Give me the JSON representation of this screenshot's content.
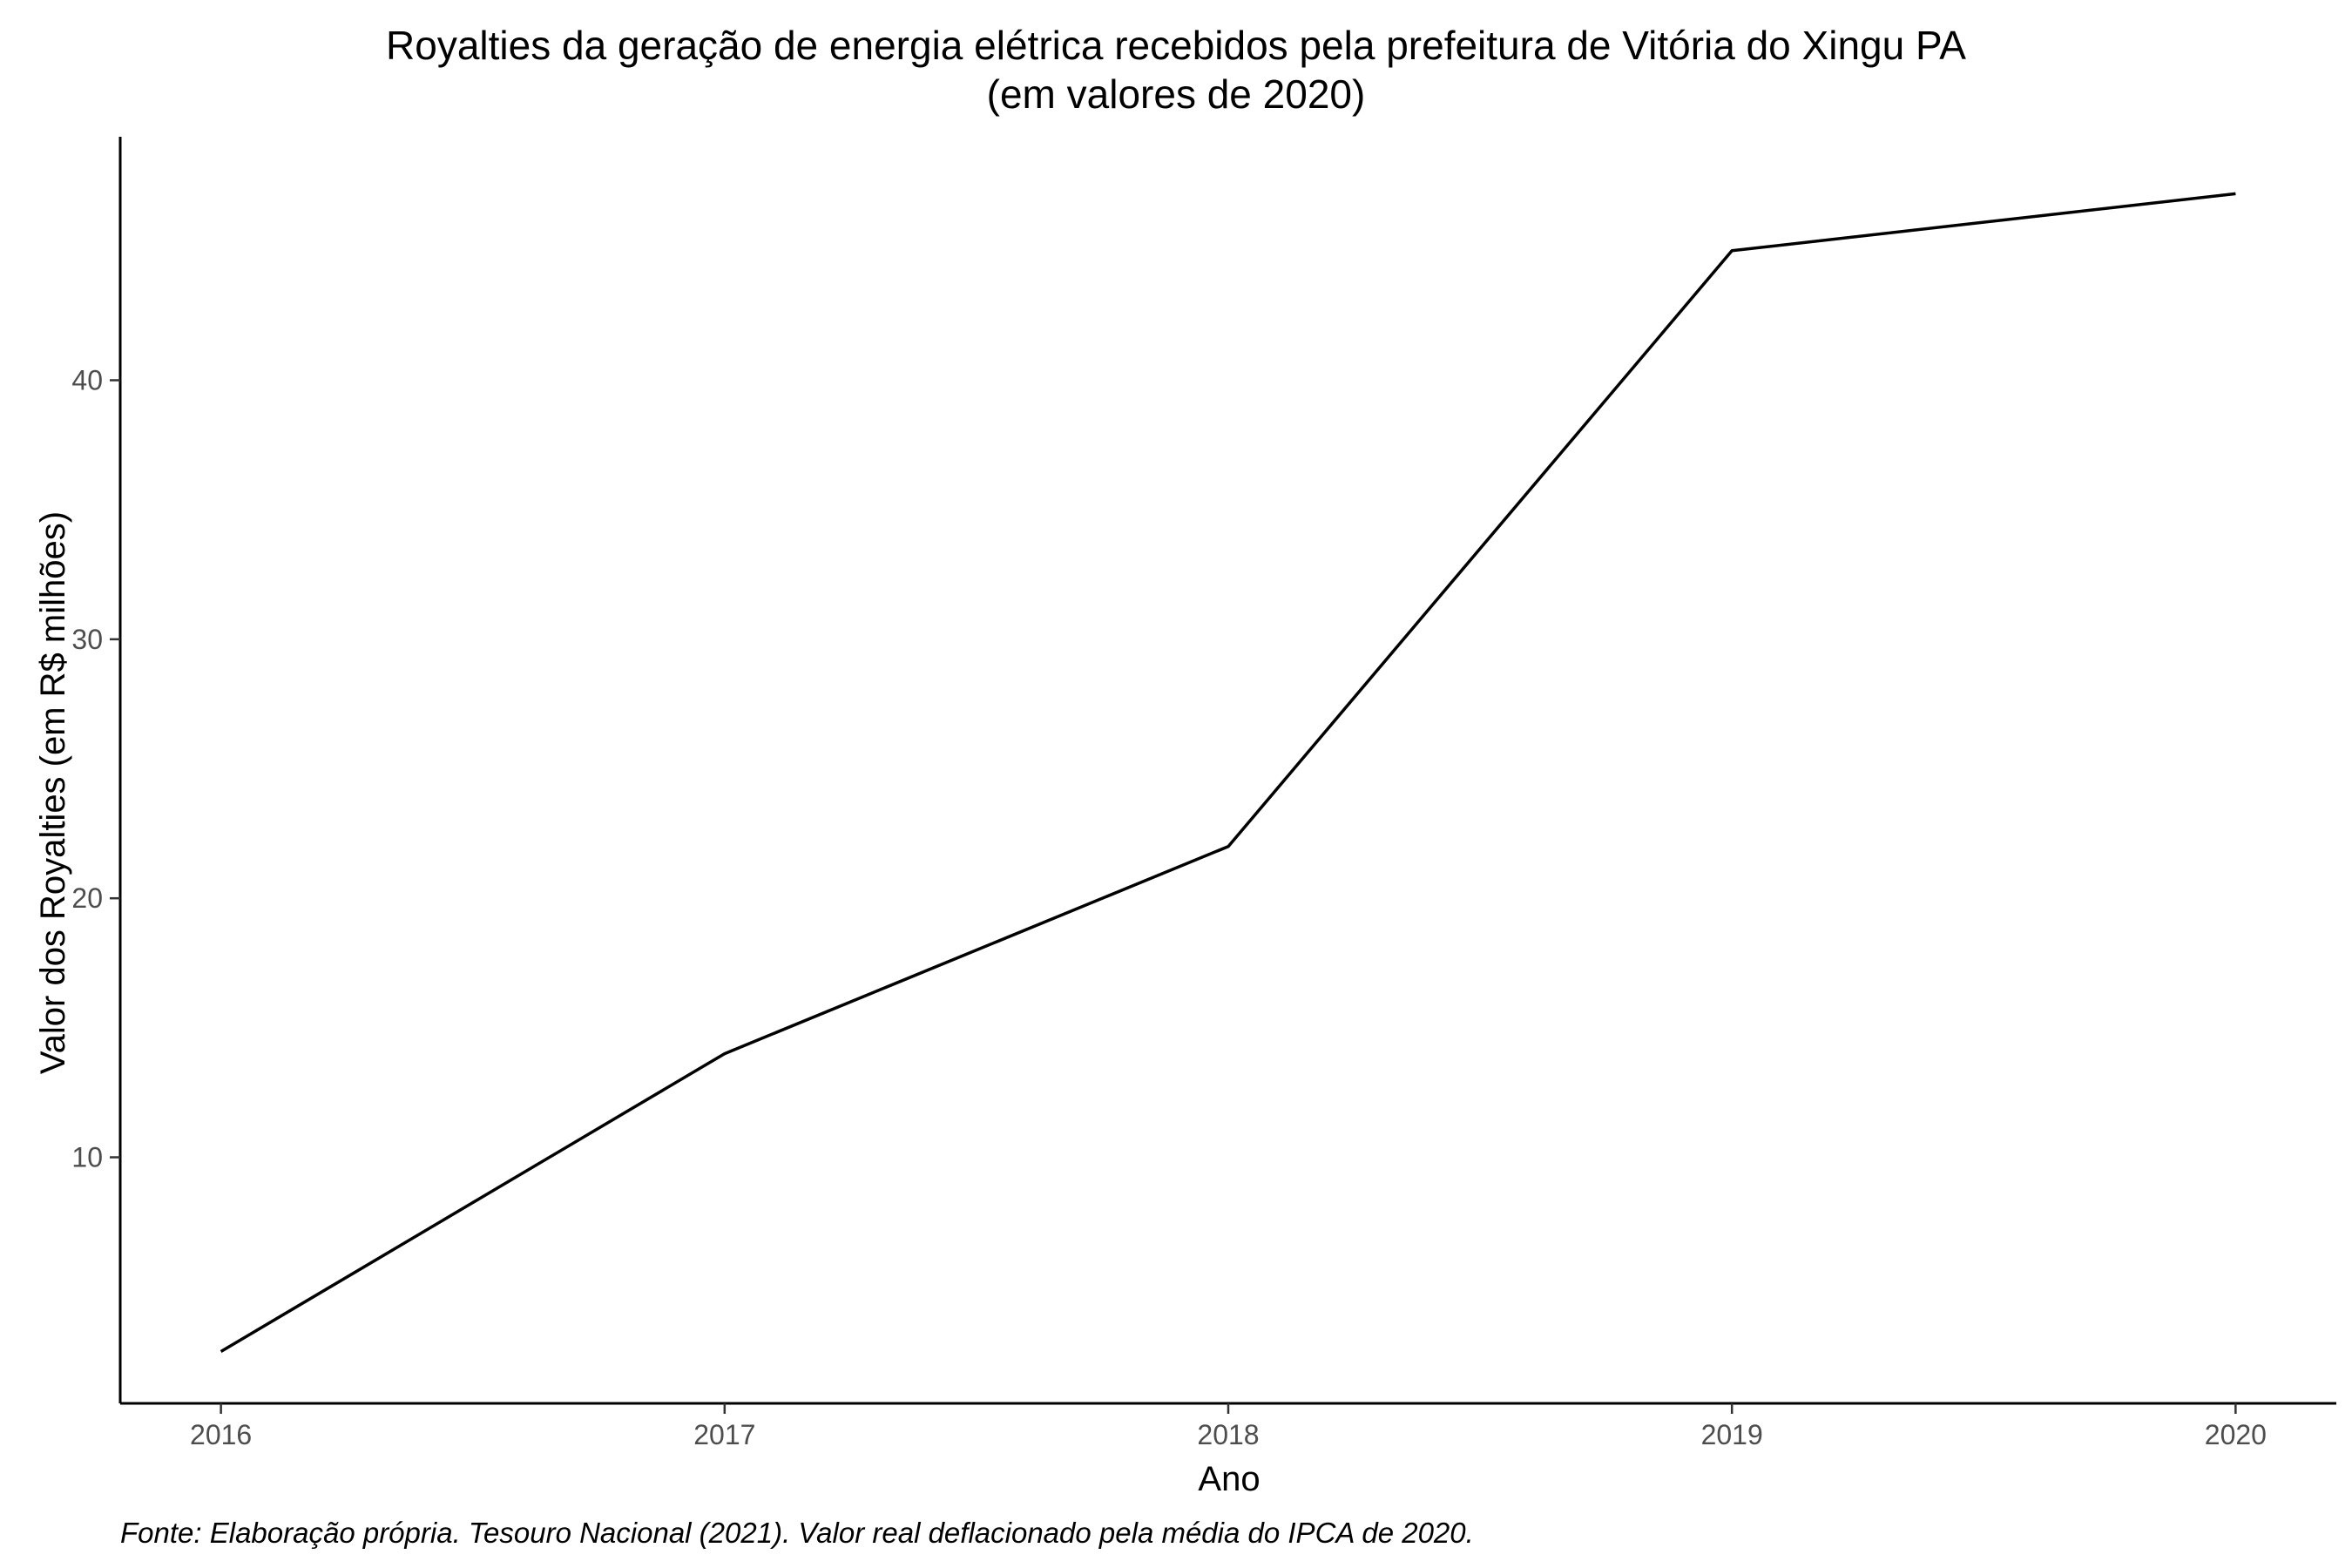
{
  "chart_data": {
    "type": "line",
    "title": "Royalties da geração de energia elétrica recebidos pela prefeitura de Vitória do Xingu PA",
    "subtitle": "(em valores de 2020)",
    "xlabel": "Ano",
    "ylabel": "Valor dos Royalties (em R$ milhões)",
    "caption": "Fonte: Elaboração própria. Tesouro Nacional (2021). Valor real deflacionado pela média do IPCA de 2020.",
    "x": [
      2016,
      2017,
      2018,
      2019,
      2020
    ],
    "series": [
      {
        "values": [
          2.5,
          14.0,
          22.0,
          45.0,
          47.2
        ]
      }
    ],
    "xlim": [
      2015.8,
      2020.2
    ],
    "ylim": [
      0.5,
      49.4
    ],
    "x_ticks": [
      "2016",
      "2017",
      "2018",
      "2019",
      "2020"
    ],
    "y_ticks": [
      10,
      20,
      30,
      40
    ],
    "y_tick_labels": [
      "10",
      "20",
      "30",
      "40"
    ],
    "grid": false,
    "legend": "none",
    "line_color": "#000000",
    "axis_color": "#000000",
    "tick_label_color": "#4d4d4d"
  }
}
